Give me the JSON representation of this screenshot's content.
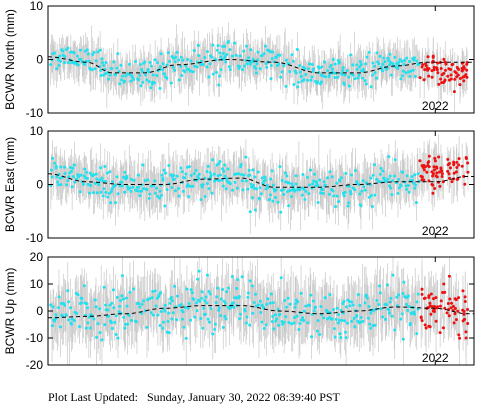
{
  "footer": {
    "label": "Plot Last Updated:",
    "timestamp": "Sunday, January 30, 2022 08:39:40 PST"
  },
  "colors": {
    "observed": "#22e0ee",
    "recent": "#ee1111",
    "error_bar": "#c8c8c8",
    "model": "#000000"
  },
  "chart_data": [
    {
      "type": "scatter",
      "ylabel": "BCWR North (mm)",
      "ylim": [
        -10,
        10
      ],
      "yticks": [
        -10,
        0,
        10
      ],
      "xlim": [
        2019.0,
        2022.3
      ],
      "xtick_label": "2022",
      "xtick_value": 2022.0,
      "grid": false,
      "trend": [
        [
          2019.0,
          0.5
        ],
        [
          2019.3,
          -0.5
        ],
        [
          2019.5,
          -2.5
        ],
        [
          2019.75,
          -2.5
        ],
        [
          2020.0,
          -1.0
        ],
        [
          2020.4,
          0.0
        ],
        [
          2020.75,
          -0.5
        ],
        [
          2021.1,
          -2.5
        ],
        [
          2021.4,
          -2.5
        ],
        [
          2021.7,
          -1.2
        ],
        [
          2021.95,
          -0.5
        ],
        [
          2022.25,
          -0.5
        ]
      ],
      "mean_observed_at_trend": true,
      "observed_scatter_sd": 1.4,
      "error_bar_halfwidth": 3.0,
      "recent_start": 2021.88,
      "recent_mean_offset": -1.5
    },
    {
      "type": "scatter",
      "ylabel": "BCWR East (mm)",
      "ylim": [
        -10,
        10
      ],
      "yticks": [
        -10,
        0,
        10
      ],
      "xlim": [
        2019.0,
        2022.3
      ],
      "xtick_label": "2022",
      "xtick_value": 2022.0,
      "grid": false,
      "trend": [
        [
          2019.0,
          2.0
        ],
        [
          2019.3,
          0.5
        ],
        [
          2019.6,
          0.0
        ],
        [
          2019.9,
          0.0
        ],
        [
          2020.2,
          1.0
        ],
        [
          2020.5,
          1.2
        ],
        [
          2020.75,
          -0.5
        ],
        [
          2021.1,
          -0.5
        ],
        [
          2021.4,
          0.0
        ],
        [
          2021.7,
          0.5
        ],
        [
          2022.0,
          0.5
        ],
        [
          2022.25,
          1.5
        ]
      ],
      "mean_observed_at_trend": true,
      "observed_scatter_sd": 1.6,
      "error_bar_halfwidth": 3.5,
      "recent_start": 2021.88,
      "recent_mean_offset": 1.5
    },
    {
      "type": "scatter",
      "ylabel": "BCWR Up (mm)",
      "ylim": [
        -20,
        20
      ],
      "yticks": [
        -20,
        -10,
        0,
        10,
        20
      ],
      "xlim": [
        2019.0,
        2022.3
      ],
      "xtick_label": "2022",
      "xtick_value": 2022.0,
      "grid": false,
      "trend": [
        [
          2019.0,
          -2.5
        ],
        [
          2019.3,
          -2.0
        ],
        [
          2019.6,
          -1.0
        ],
        [
          2019.9,
          1.0
        ],
        [
          2020.2,
          2.0
        ],
        [
          2020.5,
          2.0
        ],
        [
          2020.8,
          0.0
        ],
        [
          2021.1,
          -1.0
        ],
        [
          2021.4,
          0.0
        ],
        [
          2021.7,
          1.5
        ],
        [
          2022.0,
          1.0
        ],
        [
          2022.25,
          -1.0
        ]
      ],
      "mean_observed_at_trend": true,
      "observed_scatter_sd": 4.5,
      "error_bar_halfwidth": 9.0,
      "recent_start": 2021.88,
      "recent_mean_offset": 0.0
    }
  ]
}
